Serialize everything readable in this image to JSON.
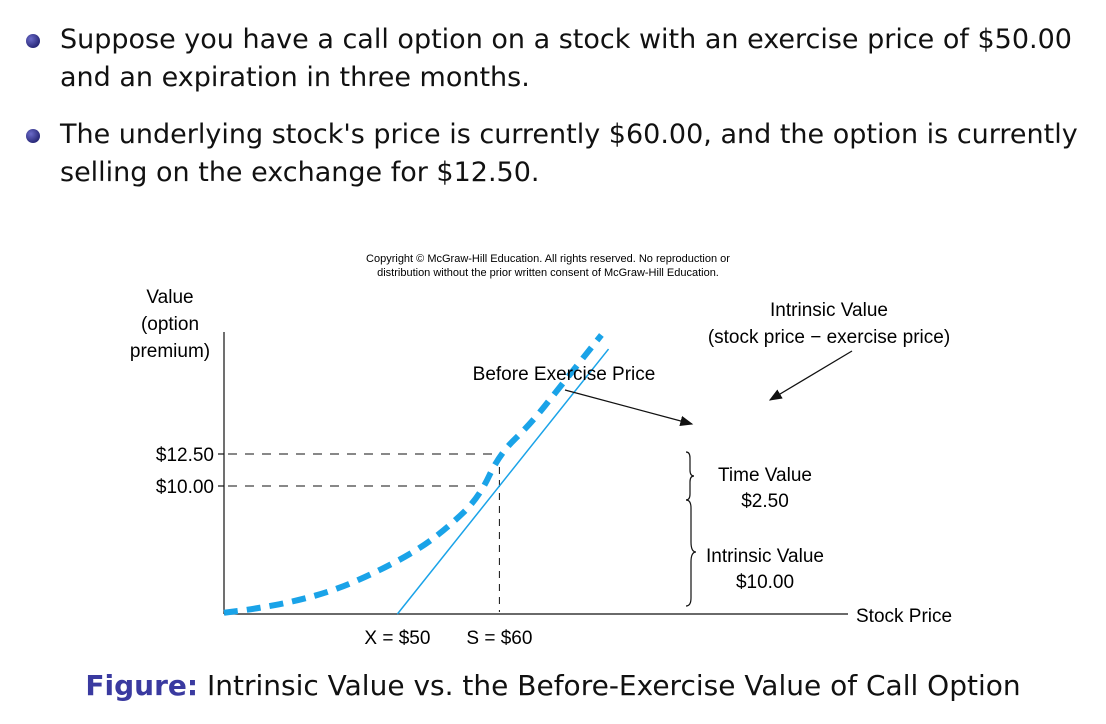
{
  "bullets": [
    {
      "line1": "Suppose you have a call option on a stock with an exercise price of $50.00",
      "line2": "and an expiration in three months."
    },
    {
      "line1": "The underlying stock's price is currently $60.00, and the option is currently",
      "line2": "selling on the exchange for $12.50."
    }
  ],
  "caption": {
    "prefix": "Figure:",
    "text": "Intrinsic Value vs. the Before-Exercise Value of Call Option"
  },
  "chart_data": {
    "type": "line",
    "copyright": [
      "Copyright © McGraw-Hill Education.  All rights reserved. No reproduction or",
      "distribution without the prior written consent of McGraw-Hill Education."
    ],
    "ylabel": [
      "Value",
      "(option",
      "premium)"
    ],
    "xlabel": "Stock Price",
    "yticks": [
      {
        "value": 12.5,
        "label": "$12.50"
      },
      {
        "value": 10,
        "label": "$10.00"
      }
    ],
    "xticks": [
      {
        "value": 50,
        "label": "X = $50"
      },
      {
        "value": 60,
        "label": "S = $60"
      }
    ],
    "xlim": [
      33,
      76
    ],
    "ylim": [
      0,
      27
    ],
    "series": [
      {
        "name": "Before Exercise Price",
        "style": "dashed",
        "color": "#1aa3e8",
        "x": [
          33,
          36,
          40,
          44,
          48,
          52,
          55,
          58,
          60,
          63,
          66,
          70
        ],
        "y": [
          0.1,
          0.4,
          1.0,
          1.9,
          3.3,
          5.0,
          6.8,
          9.1,
          12.5,
          14.8,
          17.8,
          21.8
        ]
      },
      {
        "name": "Intrinsic Value",
        "style": "solid",
        "color": "#1aa3e8",
        "x": [
          50,
          70.7
        ],
        "y": [
          0,
          20.7
        ]
      }
    ],
    "annotations": {
      "intrinsic_line_label": [
        "Intrinsic Value",
        "(stock price − exercise price)"
      ],
      "before_label": "Before Exercise Price",
      "time_value": [
        "Time Value",
        "$2.50"
      ],
      "intrinsic_value": [
        "Intrinsic Value",
        "$10.00"
      ]
    }
  }
}
